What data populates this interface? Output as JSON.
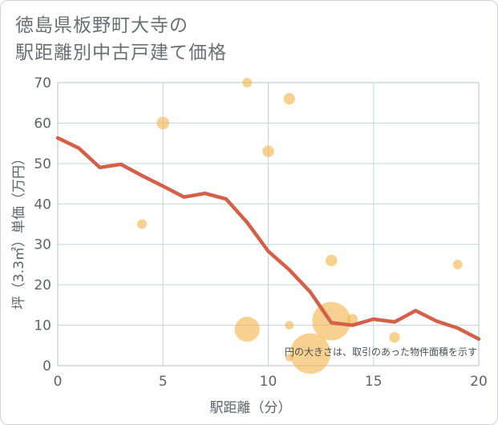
{
  "title": {
    "line1": "徳島県板野町大寺の",
    "line2": "駅距離別中古戸建て価格"
  },
  "chart_data": {
    "type": "scatter",
    "xlabel": "駅距離（分）",
    "ylabel": "坪（3.3㎡）単価（万円）",
    "xlim": [
      0,
      20
    ],
    "ylim": [
      0,
      70
    ],
    "x_ticks": [
      "0",
      "5",
      "10",
      "15",
      "20"
    ],
    "y_ticks": [
      "0",
      "10",
      "20",
      "30",
      "40",
      "50",
      "60",
      "70"
    ],
    "grid": true,
    "note": "円の大きさは、取引のあった物件面積を示す",
    "colors": {
      "bubble": "#f0b44c",
      "line": "#d4604a"
    },
    "scatter": [
      {
        "x": 4,
        "y": 35,
        "size": 1
      },
      {
        "x": 5,
        "y": 60,
        "size": 1.3
      },
      {
        "x": 9,
        "y": 70,
        "size": 1
      },
      {
        "x": 9,
        "y": 9,
        "size": 2.6
      },
      {
        "x": 10,
        "y": 53,
        "size": 1.2
      },
      {
        "x": 11,
        "y": 66,
        "size": 1.2
      },
      {
        "x": 11,
        "y": 10,
        "size": 0.9
      },
      {
        "x": 11,
        "y": 2,
        "size": 0.8
      },
      {
        "x": 12,
        "y": 3,
        "size": 4.2
      },
      {
        "x": 13,
        "y": 11,
        "size": 4.0
      },
      {
        "x": 13,
        "y": 26,
        "size": 1.2
      },
      {
        "x": 14,
        "y": 11.5,
        "size": 1.1
      },
      {
        "x": 16,
        "y": 7,
        "size": 1.1
      },
      {
        "x": 19,
        "y": 25,
        "size": 1
      }
    ],
    "line": {
      "x": [
        0,
        1,
        2,
        3,
        4,
        5,
        6,
        7,
        8,
        9,
        10,
        11,
        12,
        13,
        14,
        15,
        16,
        17,
        18,
        19,
        20
      ],
      "y": [
        56.3,
        53.8,
        49,
        49.8,
        47,
        44.4,
        41.7,
        42.6,
        41.2,
        35.4,
        28.3,
        23.7,
        18.2,
        10.6,
        10,
        11.5,
        10.8,
        13.6,
        11,
        9.3,
        6.6
      ]
    }
  }
}
